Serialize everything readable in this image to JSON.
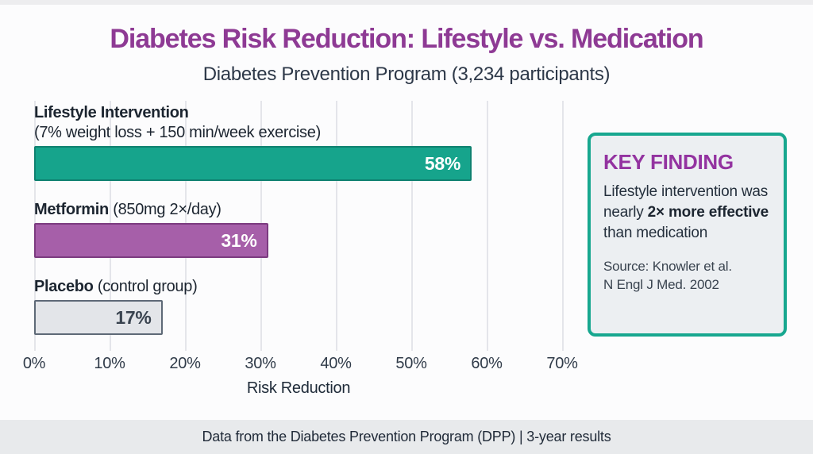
{
  "header": {
    "title": "Diabetes Risk Reduction: Lifestyle vs. Medication",
    "subtitle": "Diabetes Prevention Program (3,234 participants)"
  },
  "chart_data": {
    "type": "bar",
    "orientation": "horizontal",
    "xlabel": "Risk Reduction",
    "xlim": [
      0,
      75
    ],
    "grid": true,
    "tick_values": [
      0,
      10,
      20,
      30,
      40,
      50,
      60,
      70
    ],
    "tick_labels": [
      "0%",
      "10%",
      "20%",
      "30%",
      "40%",
      "50%",
      "60%",
      "70%"
    ],
    "bars": [
      {
        "category": "Lifestyle Intervention",
        "detail": "(7% weight loss + 150 min/week exercise)",
        "value": 58,
        "value_label": "58%",
        "fill": "#16A48C",
        "border": "#0F8170",
        "value_color": "#FFFFFF",
        "two_line_label": true
      },
      {
        "category": "Metformin",
        "detail": "(850mg 2×/day)",
        "value": 31,
        "value_label": "31%",
        "fill": "#A65FA9",
        "border": "#7C3B80",
        "value_color": "#FFFFFF",
        "two_line_label": false
      },
      {
        "category": "Placebo",
        "detail": "(control group)",
        "value": 17,
        "value_label": "17%",
        "fill": "#E3E5E9",
        "border": "#5E6977",
        "value_color": "#39434F",
        "two_line_label": false
      }
    ]
  },
  "key_finding": {
    "heading": "KEY FINDING",
    "heading_color": "#9333A0",
    "border_color": "#17A78F",
    "body_segments": [
      {
        "text": "Lifestyle intervention was nearly ",
        "bold": false
      },
      {
        "text": "2× more effective",
        "bold": true
      },
      {
        "text": " than medication",
        "bold": false
      }
    ],
    "source_lines": [
      "Source: Knowler et al.",
      "N Engl J Med. 2002"
    ]
  },
  "footer": {
    "text": "Data from the Diabetes Prevention Program (DPP) | 3-year results"
  },
  "colors": {
    "title": "#8E3A94",
    "subtitle": "#2D3848"
  }
}
